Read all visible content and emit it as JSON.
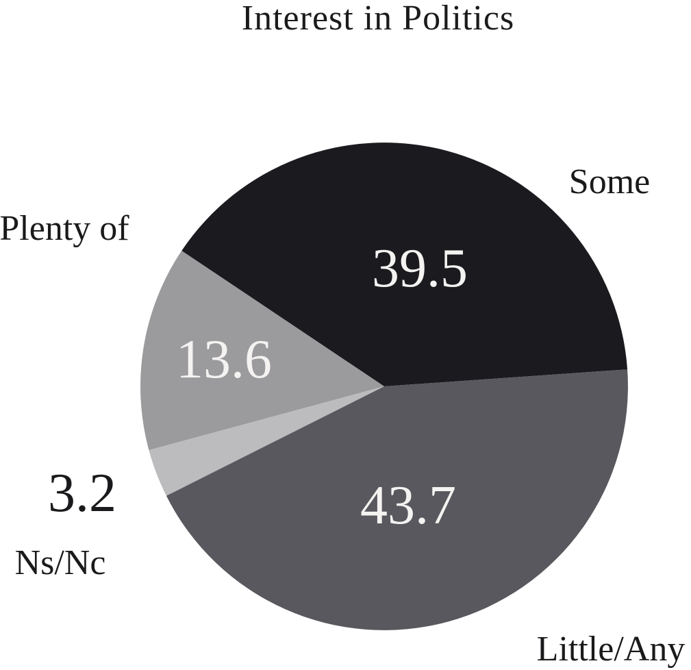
{
  "chart_data": {
    "type": "pie",
    "title": "Interest in Politics",
    "background": "#ffffff",
    "legend": "none",
    "direction": "counterclockwise",
    "start_angle_deg": 4,
    "slices": [
      {
        "label": "Some",
        "value": 39.5,
        "color": "#1b1b1f",
        "value_label_color": "#f4f3f1",
        "value_label_placement": "inside"
      },
      {
        "label": "Plenty of",
        "value": 13.6,
        "color": "#9b9b9e",
        "value_label_color": "#f4f3f1",
        "value_label_placement": "inside"
      },
      {
        "label": "Ns/Nc",
        "value": 3.2,
        "color": "#bcbcbe",
        "value_label_color": "#1a1a1c",
        "value_label_placement": "outside"
      },
      {
        "label": "Little/Any",
        "value": 43.7,
        "color": "#58585e",
        "value_label_color": "#f4f3f1",
        "value_label_placement": "inside"
      }
    ]
  }
}
